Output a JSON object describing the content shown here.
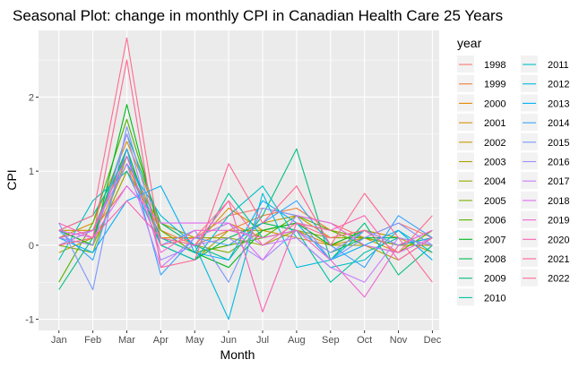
{
  "chart_data": {
    "type": "line",
    "title": "Seasonal Plot: change in monthly CPI in Canadian Health Care 25 Years",
    "xlabel": "Month",
    "ylabel": "CPI",
    "categories": [
      "Jan",
      "Feb",
      "Mar",
      "Apr",
      "May",
      "Jun",
      "Jul",
      "Aug",
      "Sep",
      "Oct",
      "Nov",
      "Dec"
    ],
    "ylim": [
      -1.15,
      2.9
    ],
    "yticks": [
      -1,
      0,
      1,
      2
    ],
    "grid": true,
    "legend_title": "year",
    "legend_position": "right",
    "series": [
      {
        "name": "1998",
        "color": "#F8766D",
        "values": [
          0.1,
          0.2,
          0.8,
          0.3,
          0.1,
          0.4,
          0.5,
          0.4,
          0.3,
          0.1,
          0.3,
          0.1
        ]
      },
      {
        "name": "1999",
        "color": "#EE7F3B",
        "values": [
          0.2,
          0.0,
          1.0,
          0.2,
          0.0,
          0.2,
          0.4,
          0.5,
          0.2,
          0.1,
          0.0,
          0.1
        ]
      },
      {
        "name": "2000",
        "color": "#E38900",
        "values": [
          0.0,
          0.1,
          1.1,
          0.1,
          0.1,
          0.3,
          0.1,
          0.2,
          0.0,
          0.2,
          0.1,
          0.0
        ]
      },
      {
        "name": "2001",
        "color": "#D59100",
        "values": [
          0.1,
          0.3,
          1.4,
          0.3,
          0.0,
          0.5,
          0.2,
          0.1,
          0.0,
          0.1,
          -0.1,
          0.2
        ]
      },
      {
        "name": "2002",
        "color": "#C49A00",
        "values": [
          0.2,
          0.2,
          1.2,
          0.2,
          -0.1,
          0.0,
          0.3,
          0.4,
          0.1,
          0.2,
          0.1,
          -0.1
        ]
      },
      {
        "name": "2003",
        "color": "#B0A100",
        "values": [
          -0.1,
          0.1,
          1.3,
          0.0,
          -0.2,
          0.2,
          0.2,
          0.3,
          0.0,
          0.0,
          -0.2,
          0.1
        ]
      },
      {
        "name": "2004",
        "color": "#99A800",
        "values": [
          0.1,
          0.0,
          1.0,
          0.3,
          0.1,
          0.1,
          0.0,
          0.2,
          0.1,
          0.1,
          0.0,
          0.0
        ]
      },
      {
        "name": "2005",
        "color": "#7CAE00",
        "values": [
          0.0,
          -0.1,
          1.2,
          0.1,
          0.0,
          -0.1,
          0.2,
          0.3,
          0.2,
          0.1,
          0.0,
          0.1
        ]
      },
      {
        "name": "2006",
        "color": "#53B400",
        "values": [
          -0.5,
          0.3,
          1.7,
          0.2,
          -0.1,
          0.0,
          0.1,
          0.4,
          0.2,
          0.0,
          -0.1,
          0.2
        ]
      },
      {
        "name": "2007",
        "color": "#00B81F",
        "values": [
          0.2,
          0.0,
          1.9,
          0.1,
          -0.1,
          -0.3,
          0.2,
          0.3,
          0.0,
          0.2,
          0.0,
          0.1
        ]
      },
      {
        "name": "2008",
        "color": "#00BB4E",
        "values": [
          0.1,
          0.2,
          1.3,
          0.0,
          -0.2,
          0.1,
          0.3,
          0.2,
          -0.1,
          0.1,
          0.1,
          0.0
        ]
      },
      {
        "name": "2009",
        "color": "#00BF7D",
        "values": [
          -0.6,
          0.1,
          1.5,
          0.3,
          0.0,
          -0.2,
          0.4,
          1.3,
          -0.2,
          0.3,
          -0.4,
          0.0
        ]
      },
      {
        "name": "2010",
        "color": "#00C1A3",
        "values": [
          0.2,
          0.4,
          1.2,
          0.1,
          -0.1,
          0.7,
          0.1,
          0.2,
          -0.5,
          -0.1,
          0.1,
          0.0
        ]
      },
      {
        "name": "2011",
        "color": "#00C0C4",
        "values": [
          -0.2,
          0.6,
          1.0,
          0.0,
          -0.2,
          0.4,
          0.8,
          0.1,
          -0.3,
          -0.2,
          0.2,
          -0.1
        ]
      },
      {
        "name": "2012",
        "color": "#00BADE",
        "values": [
          0.0,
          0.2,
          1.1,
          0.4,
          0.0,
          -1.0,
          0.7,
          -0.3,
          -0.2,
          0.2,
          0.0,
          0.1
        ]
      },
      {
        "name": "2013",
        "color": "#00B0F6",
        "values": [
          0.1,
          -0.1,
          0.6,
          0.8,
          -0.1,
          -0.2,
          0.6,
          0.3,
          -0.2,
          0.0,
          0.2,
          -0.2
        ]
      },
      {
        "name": "2014",
        "color": "#35A2FF",
        "values": [
          0.2,
          -0.2,
          1.3,
          -0.4,
          0.1,
          0.0,
          0.3,
          0.6,
          0.0,
          -0.3,
          0.4,
          0.1
        ]
      },
      {
        "name": "2015",
        "color": "#7997FF",
        "values": [
          0.3,
          -0.6,
          1.6,
          0.0,
          0.2,
          -0.5,
          0.5,
          0.4,
          -0.2,
          0.1,
          0.3,
          0.0
        ]
      },
      {
        "name": "2016",
        "color": "#A58AFF",
        "values": [
          0.1,
          0.0,
          1.5,
          -0.2,
          0.0,
          0.1,
          -0.2,
          0.2,
          -0.1,
          0.2,
          0.0,
          0.2
        ]
      },
      {
        "name": "2017",
        "color": "#C77CFF",
        "values": [
          0.0,
          0.2,
          1.1,
          -0.3,
          0.1,
          0.3,
          0.0,
          0.1,
          -0.3,
          -0.5,
          0.1,
          0.0
        ]
      },
      {
        "name": "2018",
        "color": "#E06DF0",
        "values": [
          0.2,
          0.1,
          0.8,
          0.3,
          0.3,
          0.3,
          -0.2,
          0.4,
          0.3,
          0.0,
          -0.1,
          0.1
        ]
      },
      {
        "name": "2019",
        "color": "#F066D1",
        "values": [
          0.1,
          0.2,
          1.2,
          -0.1,
          0.2,
          0.2,
          0.1,
          0.2,
          -0.2,
          -0.7,
          0.0,
          0.2
        ]
      },
      {
        "name": "2020",
        "color": "#FA62B3",
        "values": [
          0.3,
          0.1,
          0.6,
          0.1,
          0.0,
          0.6,
          -0.9,
          0.3,
          0.2,
          0.4,
          -0.2,
          0.1
        ]
      },
      {
        "name": "2021",
        "color": "#FF6692",
        "values": [
          0.0,
          0.1,
          2.5,
          -0.3,
          -0.2,
          1.1,
          0.3,
          0.8,
          0.0,
          0.7,
          0.1,
          -0.5
        ]
      },
      {
        "name": "2022",
        "color": "#FF6C91",
        "values": [
          0.2,
          0.4,
          2.8,
          0.0,
          0.1,
          0.6,
          0.0,
          0.3,
          0.1,
          0.2,
          -0.1,
          0.4
        ]
      }
    ]
  }
}
